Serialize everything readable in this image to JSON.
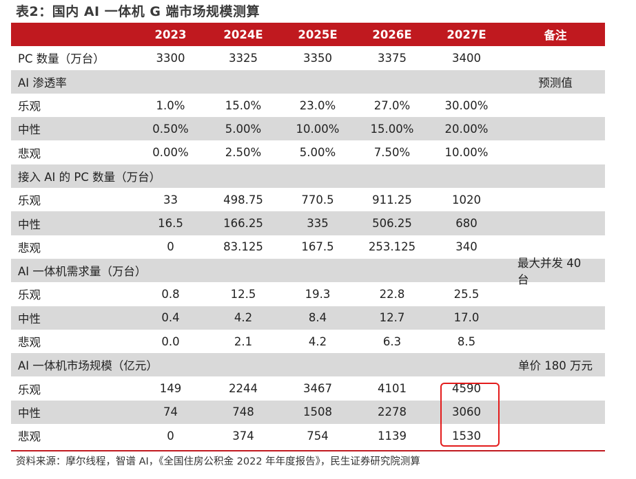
{
  "title": "表2：国内 AI 一体机 G 端市场规模测算",
  "header": [
    "",
    "2023",
    "2024E",
    "2025E",
    "2026E",
    "2027E",
    "备注"
  ],
  "rows": [
    {
      "type": "data",
      "shade": false,
      "cells": [
        "PC 数量（万台）",
        "3300",
        "3325",
        "3350",
        "3375",
        "3400",
        ""
      ]
    },
    {
      "type": "section",
      "shade": true,
      "cells": [
        "AI 渗透率",
        "",
        "",
        "",
        "",
        "",
        "预测值"
      ]
    },
    {
      "type": "data",
      "shade": false,
      "cells": [
        "乐观",
        "1.0%",
        "15.0%",
        "23.0%",
        "27.0%",
        "30.00%",
        ""
      ]
    },
    {
      "type": "data",
      "shade": true,
      "cells": [
        "中性",
        "0.50%",
        "5.00%",
        "10.00%",
        "15.00%",
        "20.00%",
        ""
      ]
    },
    {
      "type": "data",
      "shade": false,
      "cells": [
        "悲观",
        "0.00%",
        "2.50%",
        "5.00%",
        "7.50%",
        "10.00%",
        ""
      ]
    },
    {
      "type": "section",
      "shade": true,
      "cells": [
        "接入 AI 的 PC 数量（万台）",
        "",
        "",
        "",
        "",
        "",
        ""
      ]
    },
    {
      "type": "data",
      "shade": false,
      "cells": [
        "乐观",
        "33",
        "498.75",
        "770.5",
        "911.25",
        "1020",
        ""
      ]
    },
    {
      "type": "data",
      "shade": true,
      "cells": [
        "中性",
        "16.5",
        "166.25",
        "335",
        "506.25",
        "680",
        ""
      ]
    },
    {
      "type": "data",
      "shade": false,
      "cells": [
        "悲观",
        "0",
        "83.125",
        "167.5",
        "253.125",
        "340",
        ""
      ]
    },
    {
      "type": "section",
      "shade": true,
      "cells": [
        "AI 一体机需求量（万台）",
        "",
        "",
        "",
        "",
        "",
        "最大并发 40 台"
      ]
    },
    {
      "type": "data",
      "shade": false,
      "cells": [
        "乐观",
        "0.8",
        "12.5",
        "19.3",
        "22.8",
        "25.5",
        ""
      ]
    },
    {
      "type": "data",
      "shade": true,
      "cells": [
        "中性",
        "0.4",
        "4.2",
        "8.4",
        "12.7",
        "17.0",
        ""
      ]
    },
    {
      "type": "data",
      "shade": false,
      "cells": [
        "悲观",
        "0.0",
        "2.1",
        "4.2",
        "6.3",
        "8.5",
        ""
      ]
    },
    {
      "type": "section",
      "shade": true,
      "cells": [
        "AI 一体机市场规模（亿元）",
        "",
        "",
        "",
        "",
        "",
        "单价 180 万元"
      ]
    },
    {
      "type": "data",
      "shade": false,
      "cells": [
        "乐观",
        "149",
        "2244",
        "3467",
        "4101",
        "4590",
        ""
      ]
    },
    {
      "type": "data",
      "shade": true,
      "cells": [
        "中性",
        "74",
        "748",
        "1508",
        "2278",
        "3060",
        ""
      ]
    },
    {
      "type": "data",
      "shade": false,
      "cells": [
        "悲观",
        "0",
        "374",
        "754",
        "1139",
        "1530",
        ""
      ]
    }
  ],
  "source": "资料来源：摩尔线程，智谱 AI，《全国住房公积金 2022 年年度报告》，民生证券研究院测算",
  "colors": {
    "header_bg": "#c0191f",
    "shade_bg": "#d9d9d9",
    "highlight": "#e31b1b"
  }
}
